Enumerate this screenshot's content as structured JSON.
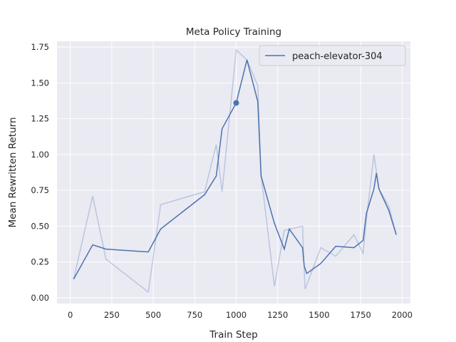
{
  "chart_data": {
    "type": "line",
    "title": "Meta Policy Training",
    "xlabel": "Train Step",
    "ylabel": "Mean Rewritten Return",
    "xlim": [
      -80,
      2050
    ],
    "ylim": [
      -0.04,
      1.79
    ],
    "xticks": [
      0,
      250,
      500,
      750,
      1000,
      1250,
      1500,
      1750,
      2000
    ],
    "yticks": [
      0.0,
      0.25,
      0.5,
      0.75,
      1.0,
      1.25,
      1.5,
      1.75
    ],
    "xtick_labels": [
      "0",
      "250",
      "500",
      "750",
      "1000",
      "1250",
      "1500",
      "1750",
      "2000"
    ],
    "ytick_labels": [
      "0.00",
      "0.25",
      "0.50",
      "0.75",
      "1.00",
      "1.25",
      "1.50",
      "1.75"
    ],
    "grid": true,
    "legend_position": "top-right",
    "colors": {
      "background": "#eaeaf2",
      "grid": "#ffffff",
      "series": "#4c72b0"
    },
    "series": [
      {
        "name": "peach-elevator-304",
        "raw": {
          "x": [
            20,
            135,
            215,
            470,
            545,
            810,
            880,
            915,
            1000,
            1065,
            1130,
            1150,
            1230,
            1290,
            1400,
            1415,
            1510,
            1600,
            1710,
            1765,
            1785,
            1830,
            1860,
            1920,
            1965
          ],
          "y": [
            0.13,
            0.71,
            0.27,
            0.04,
            0.65,
            0.74,
            1.07,
            0.74,
            1.73,
            1.66,
            1.48,
            0.86,
            0.08,
            0.47,
            0.5,
            0.06,
            0.35,
            0.29,
            0.44,
            0.31,
            0.55,
            1.0,
            0.76,
            0.64,
            0.44
          ]
        },
        "smoothed": {
          "x": [
            20,
            135,
            215,
            470,
            545,
            810,
            880,
            915,
            1000,
            1065,
            1130,
            1150,
            1230,
            1290,
            1320,
            1400,
            1410,
            1425,
            1510,
            1600,
            1710,
            1765,
            1785,
            1830,
            1845,
            1860,
            1920,
            1965
          ],
          "y": [
            0.13,
            0.37,
            0.34,
            0.32,
            0.48,
            0.72,
            0.85,
            1.18,
            1.36,
            1.66,
            1.37,
            0.85,
            0.52,
            0.34,
            0.48,
            0.35,
            0.22,
            0.17,
            0.24,
            0.36,
            0.35,
            0.4,
            0.59,
            0.76,
            0.87,
            0.76,
            0.61,
            0.44
          ]
        },
        "marker": {
          "x": 1000,
          "y": 1.36
        }
      }
    ]
  }
}
